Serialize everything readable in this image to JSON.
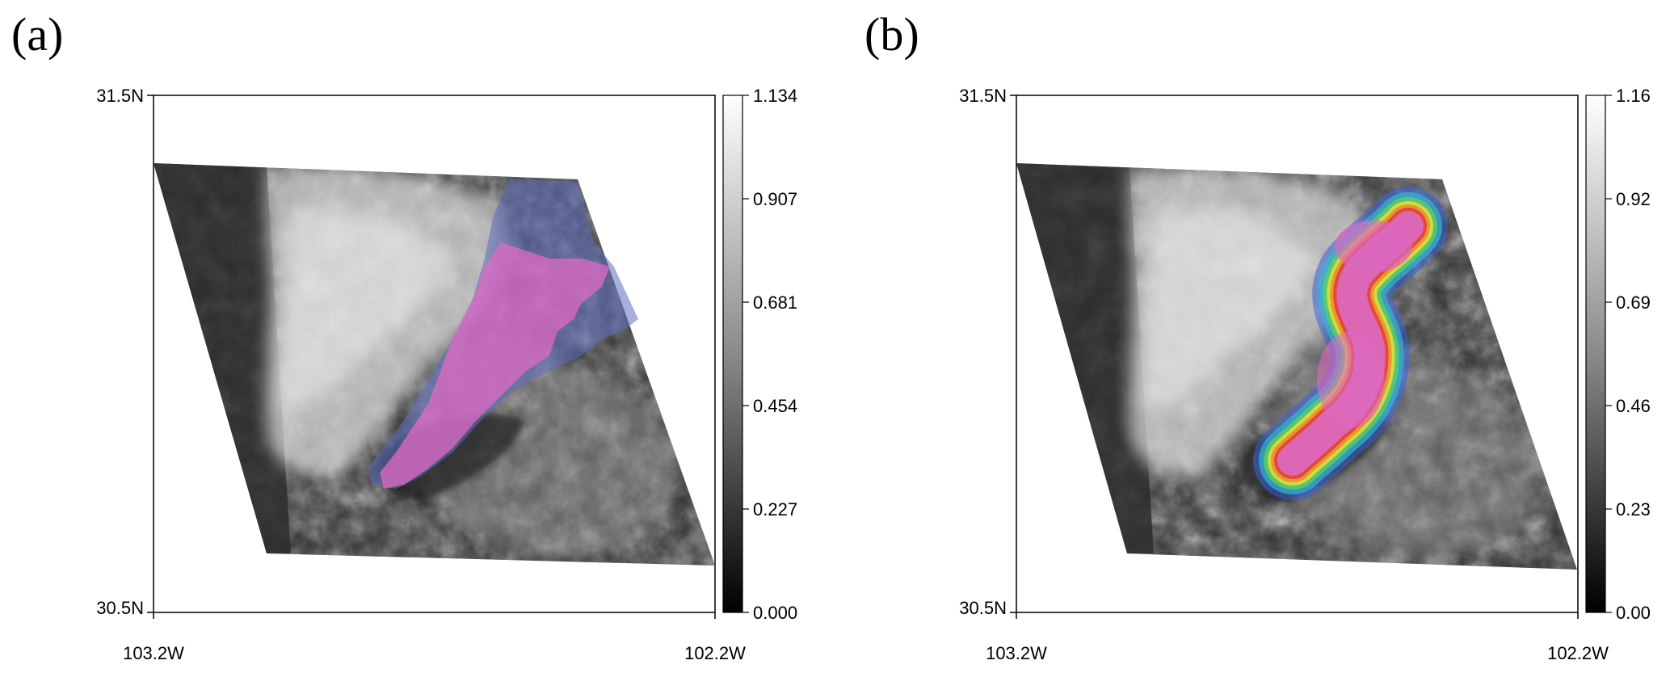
{
  "panels": [
    {
      "label": "(a)",
      "lat_top": "31.5N",
      "lat_bottom": "30.5N",
      "lon_left": "103.2W",
      "lon_right": "102.2W",
      "colorbar_ticks": [
        "1.134",
        "0.907",
        "0.681",
        "0.454",
        "0.227",
        "0.000"
      ],
      "overlay": "categorical mask (blue region with pink core)"
    },
    {
      "label": "(b)",
      "lat_top": "31.5N",
      "lat_bottom": "30.5N",
      "lon_left": "103.2W",
      "lon_right": "102.2W",
      "colorbar_ticks": [
        "1.16",
        "0.92",
        "0.69",
        "0.46",
        "0.23",
        "0.00"
      ],
      "overlay": "smooth rainbow probability contour with pink core"
    }
  ],
  "colors": {
    "mask_blue": "#5f6fc0",
    "mask_pink": "#e06ac4",
    "frame": "#000000"
  }
}
